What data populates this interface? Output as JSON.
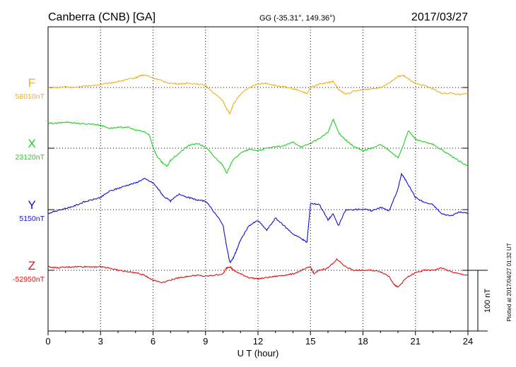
{
  "header": {
    "station": "Canberra (CNB)  [GA]",
    "coords": "GG (-35.31°, 149.36°)",
    "date": "2017/03/27"
  },
  "plotted_note": "Plotted at 2017/04/27 01:32 UT",
  "scale_label": "100 nT",
  "chart_data": {
    "type": "line",
    "xlabel": "U T (hour)",
    "xlim": [
      0,
      24
    ],
    "xticks": [
      0,
      3,
      6,
      9,
      12,
      15,
      18,
      21,
      24
    ],
    "scale_bar_nT": 100,
    "series": [
      {
        "name": "F",
        "baseline_label": "58010nT",
        "baseline_nT": 58010,
        "color": "#f0b020",
        "points": [
          [
            0,
            58010
          ],
          [
            0.5,
            58010
          ],
          [
            1,
            58011
          ],
          [
            1.5,
            58010
          ],
          [
            2,
            58012
          ],
          [
            2.5,
            58013
          ],
          [
            3,
            58015
          ],
          [
            3.5,
            58017
          ],
          [
            4,
            58020
          ],
          [
            4.5,
            58023
          ],
          [
            5,
            58026
          ],
          [
            5.3,
            58030
          ],
          [
            5.6,
            58030
          ],
          [
            6,
            58026
          ],
          [
            6.5,
            58021
          ],
          [
            7,
            58017
          ],
          [
            7.5,
            58016
          ],
          [
            8,
            58017
          ],
          [
            8.5,
            58016
          ],
          [
            9,
            58014
          ],
          [
            9.5,
            58000
          ],
          [
            10,
            57988
          ],
          [
            10.2,
            57975
          ],
          [
            10.4,
            57967
          ],
          [
            10.6,
            57983
          ],
          [
            11,
            57999
          ],
          [
            11.5,
            58010
          ],
          [
            12,
            58016
          ],
          [
            12.5,
            58017
          ],
          [
            13,
            58013
          ],
          [
            13.5,
            58011
          ],
          [
            14,
            58008
          ],
          [
            14.5,
            58004
          ],
          [
            14.8,
            57999
          ],
          [
            15,
            58010
          ],
          [
            15.5,
            58016
          ],
          [
            16,
            58018
          ],
          [
            16.3,
            58020
          ],
          [
            16.6,
            58007
          ],
          [
            17,
            57999
          ],
          [
            17.5,
            58004
          ],
          [
            18,
            58006
          ],
          [
            18.5,
            58008
          ],
          [
            19,
            58010
          ],
          [
            19.5,
            58018
          ],
          [
            20,
            58028
          ],
          [
            20.3,
            58030
          ],
          [
            20.6,
            58024
          ],
          [
            21,
            58016
          ],
          [
            21.5,
            58013
          ],
          [
            22,
            58008
          ],
          [
            22.5,
            58000
          ],
          [
            23,
            58001
          ],
          [
            23.5,
            57998
          ],
          [
            24,
            58000
          ]
        ]
      },
      {
        "name": "X",
        "baseline_label": "23120nT",
        "baseline_nT": 23120,
        "color": "#20d020",
        "points": [
          [
            0,
            23161
          ],
          [
            0.5,
            23161
          ],
          [
            1,
            23163
          ],
          [
            1.5,
            23162
          ],
          [
            2,
            23160
          ],
          [
            2.5,
            23160
          ],
          [
            3,
            23158
          ],
          [
            3.5,
            23153
          ],
          [
            4,
            23154
          ],
          [
            4.5,
            23155
          ],
          [
            5,
            23150
          ],
          [
            5.5,
            23147
          ],
          [
            5.8,
            23141
          ],
          [
            6,
            23122
          ],
          [
            6.2,
            23108
          ],
          [
            6.5,
            23097
          ],
          [
            6.8,
            23090
          ],
          [
            7,
            23100
          ],
          [
            7.5,
            23112
          ],
          [
            8,
            23124
          ],
          [
            8.5,
            23128
          ],
          [
            9,
            23122
          ],
          [
            9.5,
            23106
          ],
          [
            10,
            23092
          ],
          [
            10.2,
            23078
          ],
          [
            10.5,
            23098
          ],
          [
            11,
            23112
          ],
          [
            11.5,
            23118
          ],
          [
            12,
            23116
          ],
          [
            12.5,
            23120
          ],
          [
            13,
            23122
          ],
          [
            13.5,
            23124
          ],
          [
            14,
            23130
          ],
          [
            14.5,
            23122
          ],
          [
            15,
            23128
          ],
          [
            15.5,
            23136
          ],
          [
            16,
            23146
          ],
          [
            16.3,
            23168
          ],
          [
            16.6,
            23146
          ],
          [
            17,
            23134
          ],
          [
            17.5,
            23122
          ],
          [
            18,
            23116
          ],
          [
            18.5,
            23120
          ],
          [
            19,
            23126
          ],
          [
            19.5,
            23116
          ],
          [
            20,
            23104
          ],
          [
            20.3,
            23125
          ],
          [
            20.6,
            23149
          ],
          [
            21,
            23135
          ],
          [
            21.5,
            23130
          ],
          [
            22,
            23126
          ],
          [
            22.5,
            23117
          ],
          [
            23,
            23108
          ],
          [
            23.5,
            23099
          ],
          [
            24,
            23090
          ]
        ]
      },
      {
        "name": "Y",
        "baseline_label": "5150nT",
        "baseline_nT": 5150,
        "color": "#1010d0",
        "points": [
          [
            0,
            5144
          ],
          [
            0.5,
            5148
          ],
          [
            1,
            5152
          ],
          [
            1.5,
            5156
          ],
          [
            2,
            5162
          ],
          [
            2.5,
            5166
          ],
          [
            3,
            5170
          ],
          [
            3.5,
            5180
          ],
          [
            4,
            5185
          ],
          [
            4.5,
            5190
          ],
          [
            5,
            5194
          ],
          [
            5.5,
            5201
          ],
          [
            6,
            5194
          ],
          [
            6.3,
            5184
          ],
          [
            6.6,
            5172
          ],
          [
            7,
            5164
          ],
          [
            7.5,
            5176
          ],
          [
            8,
            5170
          ],
          [
            8.5,
            5166
          ],
          [
            9,
            5164
          ],
          [
            9.5,
            5146
          ],
          [
            10,
            5125
          ],
          [
            10.2,
            5090
          ],
          [
            10.4,
            5062
          ],
          [
            10.6,
            5071
          ],
          [
            10.8,
            5085
          ],
          [
            11,
            5100
          ],
          [
            11.5,
            5124
          ],
          [
            12,
            5132
          ],
          [
            12.5,
            5116
          ],
          [
            13,
            5136
          ],
          [
            13.5,
            5123
          ],
          [
            14,
            5110
          ],
          [
            14.5,
            5102
          ],
          [
            14.8,
            5096
          ],
          [
            15,
            5160
          ],
          [
            15.5,
            5159
          ],
          [
            16,
            5133
          ],
          [
            16.3,
            5143
          ],
          [
            16.6,
            5123
          ],
          [
            17,
            5149
          ],
          [
            17.5,
            5150
          ],
          [
            18,
            5151
          ],
          [
            18.5,
            5148
          ],
          [
            19,
            5154
          ],
          [
            19.5,
            5148
          ],
          [
            20,
            5184
          ],
          [
            20.2,
            5209
          ],
          [
            20.5,
            5196
          ],
          [
            21,
            5170
          ],
          [
            21.5,
            5162
          ],
          [
            22,
            5158
          ],
          [
            22.5,
            5143
          ],
          [
            23,
            5140
          ],
          [
            23.5,
            5146
          ],
          [
            24,
            5144
          ]
        ]
      },
      {
        "name": "Z",
        "baseline_label": "-52950nT",
        "baseline_nT": -52950,
        "color": "#e01010",
        "points": [
          [
            0,
            -52944
          ],
          [
            0.5,
            -52946
          ],
          [
            1,
            -52945
          ],
          [
            1.5,
            -52944
          ],
          [
            2,
            -52944
          ],
          [
            2.5,
            -52944
          ],
          [
            3,
            -52944
          ],
          [
            3.5,
            -52946
          ],
          [
            4,
            -52950
          ],
          [
            4.5,
            -52952
          ],
          [
            5,
            -52954
          ],
          [
            5.5,
            -52958
          ],
          [
            6,
            -52966
          ],
          [
            6.5,
            -52970
          ],
          [
            7,
            -52966
          ],
          [
            7.5,
            -52962
          ],
          [
            8,
            -52960
          ],
          [
            8.5,
            -52958
          ],
          [
            9,
            -52960
          ],
          [
            9.5,
            -52958
          ],
          [
            10,
            -52956
          ],
          [
            10.2,
            -52946
          ],
          [
            10.4,
            -52944
          ],
          [
            10.6,
            -52950
          ],
          [
            11,
            -52956
          ],
          [
            11.5,
            -52962
          ],
          [
            12,
            -52964
          ],
          [
            12.5,
            -52962
          ],
          [
            13,
            -52960
          ],
          [
            13.5,
            -52958
          ],
          [
            14,
            -52956
          ],
          [
            14.5,
            -52950
          ],
          [
            15,
            -52944
          ],
          [
            15.2,
            -52956
          ],
          [
            15.5,
            -52950
          ],
          [
            16,
            -52946
          ],
          [
            16.5,
            -52932
          ],
          [
            17,
            -52944
          ],
          [
            17.5,
            -52950
          ],
          [
            18,
            -52950
          ],
          [
            18.5,
            -52950
          ],
          [
            19,
            -52952
          ],
          [
            19.5,
            -52960
          ],
          [
            19.8,
            -52974
          ],
          [
            20,
            -52978
          ],
          [
            20.5,
            -52962
          ],
          [
            21,
            -52954
          ],
          [
            21.5,
            -52950
          ],
          [
            22,
            -52950
          ],
          [
            22.5,
            -52946
          ],
          [
            23,
            -52952
          ],
          [
            23.5,
            -52956
          ],
          [
            24,
            -52958
          ]
        ]
      }
    ]
  }
}
